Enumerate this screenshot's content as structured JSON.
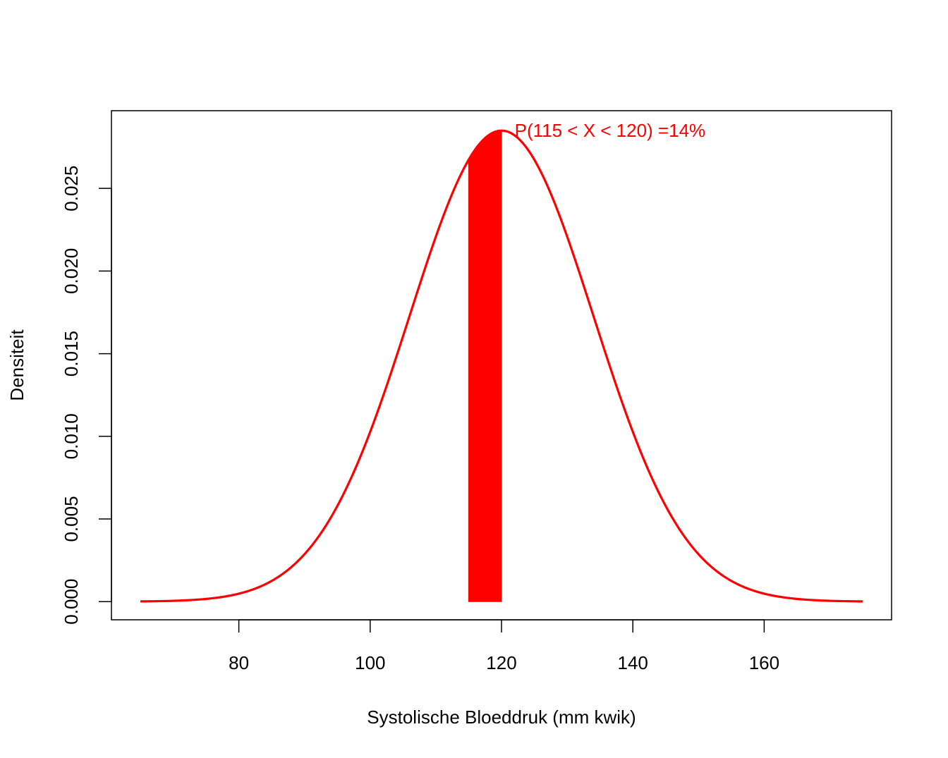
{
  "chart_data": {
    "type": "area",
    "title": "",
    "xlabel": "Systolische Bloeddruk (mm kwik)",
    "ylabel": "Densiteit",
    "xlim": [
      60.6,
      179.4
    ],
    "ylim": [
      -0.0011,
      0.0297
    ],
    "x_ticks": [
      80,
      100,
      120,
      140,
      160
    ],
    "x_tick_labels": [
      "80",
      "100",
      "120",
      "140",
      "160"
    ],
    "y_ticks": [
      0,
      0.005,
      0.01,
      0.015,
      0.02,
      0.025
    ],
    "y_tick_labels": [
      "0.000",
      "0.005",
      "0.010",
      "0.015",
      "0.020",
      "0.025"
    ],
    "grid": false,
    "series": [
      {
        "distribution": "normal",
        "mean": 120,
        "sd": 14,
        "x_range": [
          65,
          175
        ],
        "color": "#ff0000"
      }
    ],
    "shaded_region": {
      "from": 115,
      "to": 120,
      "color": "#ff0000"
    },
    "annotation": {
      "text": "P(115 < X < 120) =14%",
      "x": 122,
      "y": 0.0285,
      "color": "#ff0000"
    }
  }
}
